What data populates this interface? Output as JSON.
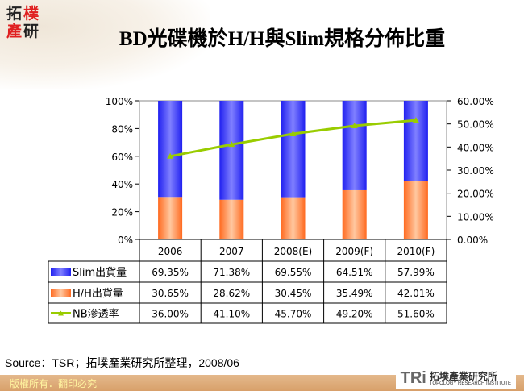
{
  "header": {
    "title": "BD光碟機於H/H與Slim規格分佈比重",
    "logo_chars": [
      "拓",
      "樸",
      "產",
      "研"
    ]
  },
  "colors": {
    "slim": "#3a3af5",
    "hh": "#ff8040",
    "nb": "#99cc00"
  },
  "chart_data": {
    "type": "bar",
    "stacked": true,
    "categories": [
      "2006",
      "2007",
      "2008(E)",
      "2009(F)",
      "2010(F)"
    ],
    "series": [
      {
        "name": "Slim出貨量",
        "type": "bar",
        "axis": "left",
        "values": [
          69.35,
          71.38,
          69.55,
          64.51,
          57.99
        ],
        "labels": [
          "69.35%",
          "71.38%",
          "69.55%",
          "64.51%",
          "57.99%"
        ]
      },
      {
        "name": "H/H出貨量",
        "type": "bar",
        "axis": "left",
        "values": [
          30.65,
          28.62,
          30.45,
          35.49,
          42.01
        ],
        "labels": [
          "30.65%",
          "28.62%",
          "30.45%",
          "35.49%",
          "42.01%"
        ]
      },
      {
        "name": "NB滲透率",
        "type": "line",
        "axis": "right",
        "values": [
          36.0,
          41.1,
          45.7,
          49.2,
          51.6
        ],
        "labels": [
          "36.00%",
          "41.10%",
          "45.70%",
          "49.20%",
          "51.60%"
        ]
      }
    ],
    "left_axis": {
      "ylim": [
        0,
        100
      ],
      "ticks": [
        "0%",
        "20%",
        "40%",
        "60%",
        "80%",
        "100%"
      ]
    },
    "right_axis": {
      "ylim": [
        0,
        60
      ],
      "ticks": [
        "0.00%",
        "10.00%",
        "20.00%",
        "30.00%",
        "40.00%",
        "50.00%",
        "60.00%"
      ]
    },
    "legend": "data-table",
    "grid": false
  },
  "footer": {
    "source": "Source：TSR；拓墣產業研究所整理，2008/06",
    "copyright": "版權所有．翻印必究",
    "tri_logo": "TRi",
    "tri_cn": "拓墣產業研究所",
    "tri_en": "TOPOLOGY RESEARCH INSTITUTE"
  }
}
